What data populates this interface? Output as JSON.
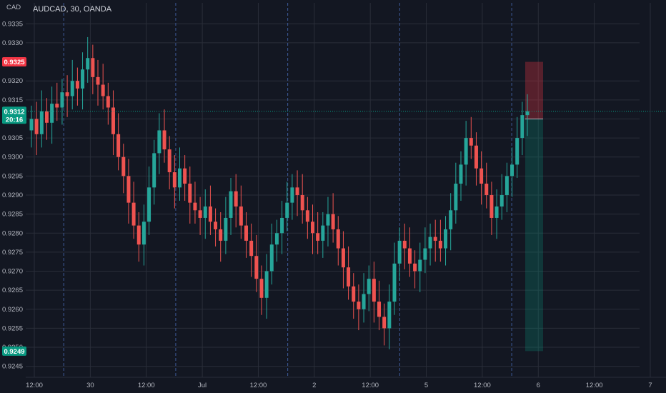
{
  "header": {
    "title": "AUDCAD, 30, OANDA",
    "currency": "CAD"
  },
  "price_badges": {
    "target": {
      "label": "0.9325",
      "value": 0.9325,
      "color": "#f23645"
    },
    "last": {
      "label": "0.9312",
      "value": 0.9312,
      "timer": "20:16",
      "color": "#089981"
    },
    "entry": {
      "label": "0.9310",
      "value": 0.931,
      "color": "#b2b5be"
    },
    "stop": {
      "label": "0.9249",
      "value": 0.9249,
      "color": "#089981"
    }
  },
  "position_tool": {
    "entry": 0.931,
    "target": 0.9325,
    "stop": 0.9249,
    "profit_color": "#f23645",
    "risk_color": "#089981"
  },
  "colors": {
    "background": "#131722",
    "up": "#26a69a",
    "down": "#ef5350",
    "grid": "#2a2e39",
    "session_line": "#3d5a99"
  },
  "chart_data": {
    "type": "candlestick",
    "title": "AUDCAD, 30, OANDA",
    "ylabel": "CAD",
    "ylim": [
      0.92425,
      0.93405
    ],
    "y_ticks": [
      "0.9245",
      "0.9250",
      "0.9255",
      "0.9260",
      "0.9265",
      "0.9270",
      "0.9275",
      "0.9280",
      "0.9285",
      "0.9290",
      "0.9295",
      "0.9300",
      "0.9305",
      "0.9310",
      "0.9315",
      "0.9320",
      "0.9330",
      "0.9335"
    ],
    "x_ticks": [
      "12:00",
      "30",
      "12:00",
      "Jul",
      "12:00",
      "2",
      "12:00",
      "5",
      "12:00",
      "6",
      "12:00",
      "7"
    ],
    "session_breaks": 5,
    "series": [
      {
        "name": "AUDCAD",
        "closes": [
          0.931,
          0.9306,
          0.9312,
          0.9309,
          0.9314,
          0.9313,
          0.9317,
          0.9316,
          0.932,
          0.9318,
          0.9323,
          0.9326,
          0.9321,
          0.9319,
          0.9316,
          0.9313,
          0.9306,
          0.93,
          0.9295,
          0.9288,
          0.9282,
          0.9277,
          0.9283,
          0.9292,
          0.9301,
          0.9307,
          0.9302,
          0.9296,
          0.9292,
          0.9297,
          0.9293,
          0.9288,
          0.9286,
          0.9284,
          0.9287,
          0.9283,
          0.9281,
          0.9278,
          0.9284,
          0.9291,
          0.9287,
          0.9282,
          0.9278,
          0.9274,
          0.9268,
          0.9263,
          0.927,
          0.9277,
          0.928,
          0.9284,
          0.9288,
          0.9292,
          0.929,
          0.9286,
          0.9283,
          0.928,
          0.9278,
          0.9282,
          0.9285,
          0.9281,
          0.9276,
          0.9271,
          0.9266,
          0.9262,
          0.926,
          0.9264,
          0.9268,
          0.9262,
          0.9258,
          0.9255,
          0.9262,
          0.9272,
          0.9278,
          0.9276,
          0.9272,
          0.927,
          0.9273,
          0.9276,
          0.9279,
          0.9278,
          0.9276,
          0.9281,
          0.9286,
          0.9293,
          0.9298,
          0.9305,
          0.9303,
          0.9297,
          0.9293,
          0.929,
          0.9284,
          0.9287,
          0.929,
          0.9295,
          0.9298,
          0.9305,
          0.9311,
          0.9312
        ]
      }
    ]
  }
}
